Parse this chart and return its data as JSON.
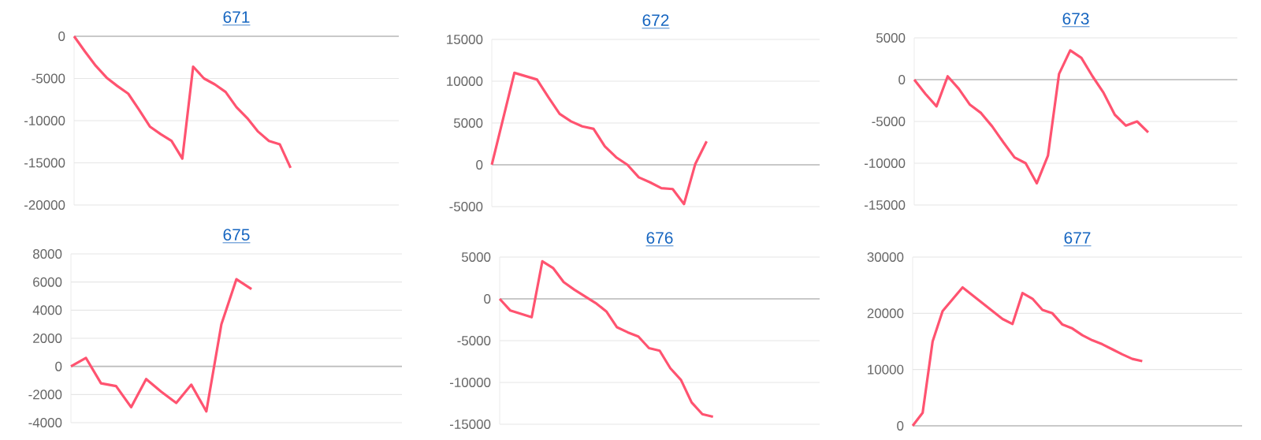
{
  "chart_data": [
    {
      "type": "line",
      "title": "671",
      "categories": [
        null,
        null,
        null,
        null,
        null,
        null,
        null,
        null,
        null,
        null,
        null,
        null,
        null,
        null,
        null,
        null,
        null,
        null,
        null,
        null,
        null,
        null,
        null,
        null,
        null,
        null,
        null,
        null,
        null,
        null,
        null
      ],
      "values": [
        0,
        -1800,
        -3500,
        -4900,
        -5900,
        -6800,
        -8700,
        -10700,
        -11600,
        -12400,
        -14500,
        -3600,
        -5000,
        -5700,
        -6600,
        -8400,
        -9700,
        -11300,
        -12400,
        -12800,
        -15600,
        null,
        null,
        null,
        null,
        null,
        null,
        null,
        null,
        null,
        null
      ],
      "color": "#ff5370",
      "ylim": [
        -20000,
        0
      ],
      "yticks": [
        -20000,
        -15000,
        -10000,
        -5000,
        0
      ],
      "grid": "y"
    },
    {
      "type": "line",
      "title": "672",
      "categories": [
        null,
        null,
        null,
        null,
        null,
        null,
        null,
        null,
        null,
        null,
        null,
        null,
        null,
        null,
        null,
        null,
        null,
        null,
        null,
        null,
        null,
        null,
        null,
        null,
        null,
        null,
        null,
        null,
        null,
        null
      ],
      "values": [
        0,
        5500,
        11000,
        10600,
        10200,
        8100,
        6100,
        5200,
        4600,
        4300,
        2200,
        900,
        0,
        -1500,
        -2100,
        -2800,
        -2900,
        -4700,
        100,
        2800,
        null,
        null,
        null,
        null,
        null,
        null,
        null,
        null,
        null,
        null
      ],
      "color": "#ff5370",
      "ylim": [
        -5000,
        15000
      ],
      "yticks": [
        -5000,
        0,
        5000,
        10000,
        15000
      ],
      "grid": "y"
    },
    {
      "type": "line",
      "title": "673",
      "categories": [
        null,
        null,
        null,
        null,
        null,
        null,
        null,
        null,
        null,
        null,
        null,
        null,
        null,
        null,
        null,
        null,
        null,
        null,
        null,
        null,
        null,
        null,
        null,
        null,
        null,
        null,
        null,
        null,
        null,
        null
      ],
      "values": [
        0,
        -1700,
        -3200,
        400,
        -1100,
        -3000,
        -4000,
        -5600,
        -7500,
        -9300,
        -10000,
        -12400,
        -9100,
        700,
        3500,
        2600,
        400,
        -1600,
        -4200,
        -5500,
        -5000,
        -6300,
        null,
        null,
        null,
        null,
        null,
        null,
        null,
        null
      ],
      "color": "#ff5370",
      "ylim": [
        -15000,
        5000
      ],
      "yticks": [
        -15000,
        -10000,
        -5000,
        0,
        5000
      ],
      "grid": "y"
    },
    {
      "type": "line",
      "title": "675",
      "categories": [
        null,
        null,
        null,
        null,
        null,
        null,
        null,
        null,
        null,
        null,
        null,
        null,
        null,
        null,
        null,
        null,
        null,
        null,
        null,
        null,
        null,
        null,
        null
      ],
      "values": [
        0,
        600,
        -1200,
        -1400,
        -2900,
        -900,
        -1800,
        -2600,
        -1300,
        -3200,
        3000,
        6200,
        5500,
        null,
        null,
        null,
        null,
        null,
        null,
        null,
        null,
        null,
        null
      ],
      "color": "#ff5370",
      "ylim": [
        -4000,
        8000
      ],
      "yticks": [
        -4000,
        -2000,
        0,
        2000,
        4000,
        6000,
        8000
      ],
      "grid": "y"
    },
    {
      "type": "line",
      "title": "676",
      "categories": [
        null,
        null,
        null,
        null,
        null,
        null,
        null,
        null,
        null,
        null,
        null,
        null,
        null,
        null,
        null,
        null,
        null,
        null,
        null,
        null,
        null,
        null,
        null,
        null,
        null,
        null,
        null,
        null,
        null,
        null,
        null
      ],
      "values": [
        0,
        -1400,
        -1800,
        -2200,
        4500,
        3700,
        2000,
        1100,
        300,
        -500,
        -1500,
        -3400,
        -4000,
        -4500,
        -5900,
        -6200,
        -8300,
        -9700,
        -12400,
        -13800,
        -14100,
        null,
        null,
        null,
        null,
        null,
        null,
        null,
        null,
        null,
        null
      ],
      "color": "#ff5370",
      "ylim": [
        -15000,
        5000
      ],
      "yticks": [
        -15000,
        -10000,
        -5000,
        0,
        5000
      ],
      "grid": "y"
    },
    {
      "type": "line",
      "title": "677",
      "categories": [
        null,
        null,
        null,
        null,
        null,
        null,
        null,
        null,
        null,
        null,
        null,
        null,
        null,
        null,
        null,
        null,
        null,
        null,
        null,
        null,
        null,
        null,
        null,
        null,
        null,
        null,
        null,
        null,
        null,
        null,
        null,
        null,
        null,
        null
      ],
      "values": [
        0,
        2300,
        15000,
        20400,
        22500,
        24600,
        23200,
        21800,
        20400,
        19000,
        18100,
        23600,
        22600,
        20600,
        20000,
        18000,
        17300,
        16100,
        15200,
        14500,
        13600,
        12700,
        11900,
        11500,
        null,
        null,
        null,
        null,
        null,
        null,
        null,
        null,
        null,
        null
      ],
      "color": "#ff5370",
      "ylim": [
        0,
        30000
      ],
      "yticks": [
        0,
        10000,
        20000,
        30000
      ],
      "grid": "y"
    }
  ]
}
